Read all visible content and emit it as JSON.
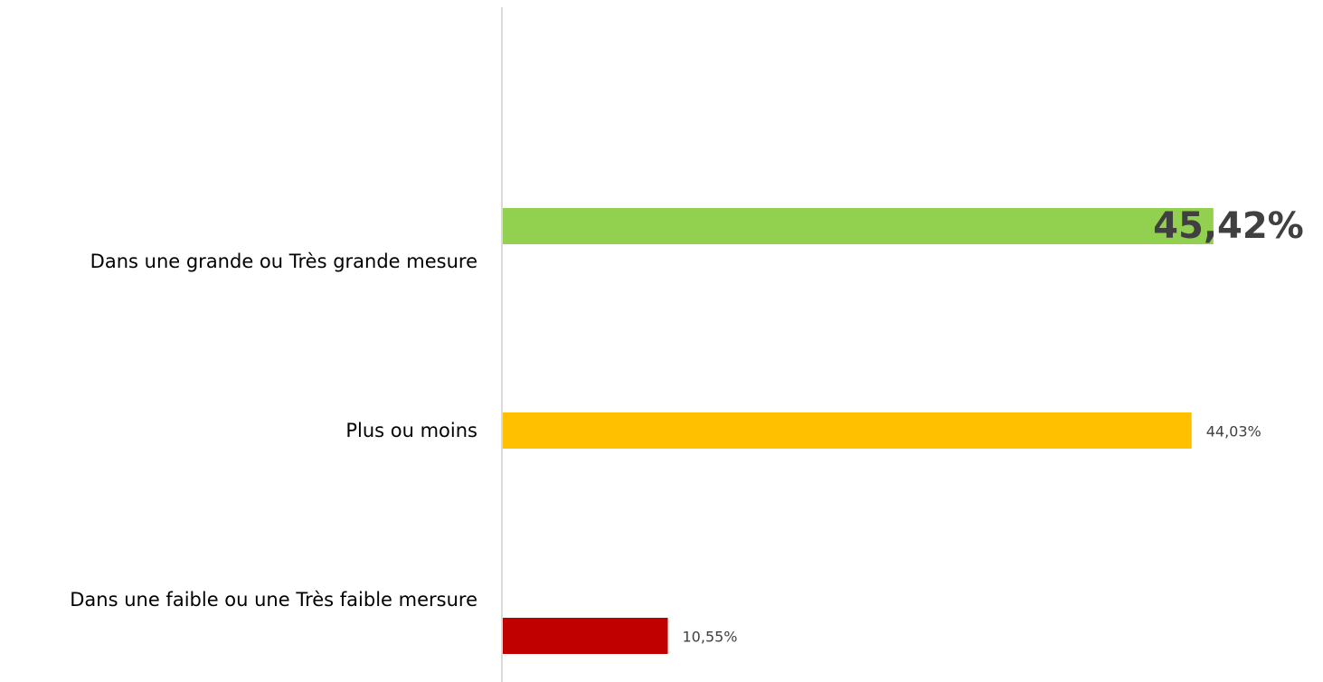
{
  "chart_data": {
    "type": "bar",
    "orientation": "horizontal",
    "categories": [
      "Dans une grande ou Très grande mesure",
      "Plus ou moins",
      "Dans une faible ou une Très faible mersure"
    ],
    "values": [
      45.42,
      44.03,
      10.55
    ],
    "value_labels": [
      "45,42%",
      "44,03%",
      "10,55%"
    ],
    "colors": [
      "#92d050",
      "#ffc000",
      "#c00000"
    ]
  }
}
